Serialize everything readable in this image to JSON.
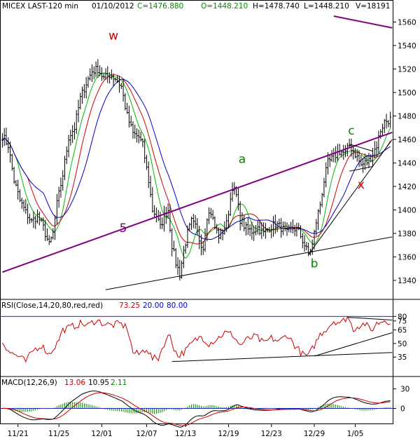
{
  "header": {
    "symbol": "MICEX LAST-120 min",
    "date": "01/10/2012",
    "close": "C=1476.880",
    "open": "O=1448.210",
    "high": "H=1478.740",
    "low": "L=1448.210",
    "volume": "V=18191"
  },
  "colors": {
    "price": "#000000",
    "ma_fast": "#00bb00",
    "ma_mid": "#cc0000",
    "ma_slow": "#0000cc",
    "trendline": "#800080",
    "rsi": "#cc0000",
    "macd": "#000000",
    "macd_signal": "#cc0000",
    "macd_hist": "#008800",
    "annotation_green": "#008800",
    "annotation_red": "#cc0000"
  },
  "chart_data": [
    {
      "type": "line",
      "panel": "price",
      "ylim": [
        1325,
        1568
      ],
      "yticks": [
        1340,
        1360,
        1380,
        1400,
        1420,
        1440,
        1460,
        1480,
        1500,
        1520,
        1540,
        1560
      ],
      "xticks": [
        "11/21",
        "11/25",
        "12/01",
        "12/07",
        "12/13",
        "12/19",
        "12/23",
        "12/29",
        "1/05"
      ],
      "xtick_bars": [
        8,
        29,
        51,
        74,
        94,
        116,
        138,
        160,
        181
      ],
      "bar_count": 200,
      "price_anchors": [
        [
          0,
          1463
        ],
        [
          3,
          1455
        ],
        [
          6,
          1425
        ],
        [
          9,
          1408
        ],
        [
          12,
          1398
        ],
        [
          15,
          1390
        ],
        [
          18,
          1395
        ],
        [
          21,
          1385
        ],
        [
          24,
          1370
        ],
        [
          26,
          1380
        ],
        [
          28,
          1405
        ],
        [
          31,
          1430
        ],
        [
          34,
          1462
        ],
        [
          37,
          1470
        ],
        [
          40,
          1495
        ],
        [
          43,
          1508
        ],
        [
          46,
          1518
        ],
        [
          49,
          1520
        ],
        [
          52,
          1512
        ],
        [
          55,
          1515
        ],
        [
          58,
          1512
        ],
        [
          61,
          1505
        ],
        [
          64,
          1480
        ],
        [
          67,
          1465
        ],
        [
          70,
          1462
        ],
        [
          72,
          1455
        ],
        [
          75,
          1425
        ],
        [
          77,
          1400
        ],
        [
          79,
          1395
        ],
        [
          81,
          1385
        ],
        [
          83,
          1395
        ],
        [
          85,
          1400
        ],
        [
          87,
          1370
        ],
        [
          89,
          1355
        ],
        [
          91,
          1345
        ],
        [
          93,
          1365
        ],
        [
          95,
          1380
        ],
        [
          97,
          1390
        ],
        [
          99,
          1385
        ],
        [
          101,
          1375
        ],
        [
          103,
          1368
        ],
        [
          105,
          1395
        ],
        [
          107,
          1398
        ],
        [
          109,
          1385
        ],
        [
          111,
          1378
        ],
        [
          113,
          1382
        ],
        [
          115,
          1388
        ],
        [
          118,
          1420
        ],
        [
          120,
          1412
        ],
        [
          122,
          1392
        ],
        [
          125,
          1384
        ],
        [
          128,
          1382
        ],
        [
          131,
          1385
        ],
        [
          134,
          1380
        ],
        [
          137,
          1385
        ],
        [
          140,
          1388
        ],
        [
          143,
          1385
        ],
        [
          146,
          1380
        ],
        [
          149,
          1385
        ],
        [
          152,
          1382
        ],
        [
          155,
          1370
        ],
        [
          157,
          1362
        ],
        [
          159,
          1370
        ],
        [
          161,
          1390
        ],
        [
          163,
          1405
        ],
        [
          165,
          1425
        ],
        [
          167,
          1440
        ],
        [
          170,
          1445
        ],
        [
          173,
          1450
        ],
        [
          176,
          1448
        ],
        [
          178,
          1455
        ],
        [
          180,
          1450
        ],
        [
          182,
          1445
        ],
        [
          184,
          1438
        ],
        [
          186,
          1440
        ],
        [
          188,
          1442
        ],
        [
          190,
          1448
        ],
        [
          192,
          1455
        ],
        [
          194,
          1468
        ],
        [
          196,
          1475
        ],
        [
          199,
          1477
        ]
      ],
      "trendlines": [
        {
          "name": "channel-upper",
          "points": [
            [
              0,
              1347
            ],
            [
              200,
              1466
            ]
          ]
        },
        {
          "name": "support-lower",
          "points": [
            [
              53,
              1332
            ],
            [
              200,
              1377
            ]
          ]
        },
        {
          "name": "wedge-upper",
          "points": [
            [
              178,
              1456
            ],
            [
              190,
              1450
            ]
          ]
        },
        {
          "name": "wedge-lower",
          "points": [
            [
              178,
              1433
            ],
            [
              190,
              1437
            ]
          ]
        },
        {
          "name": "rise-line",
          "points": [
            [
              157,
              1362
            ],
            [
              200,
              1460
            ]
          ]
        },
        {
          "name": "volume-line",
          "points": [
            [
              170,
              1565
            ],
            [
              200,
              1555
            ]
          ]
        }
      ],
      "annotations": [
        {
          "text": "w",
          "bar": 57,
          "y": 1545,
          "color": "annotation_red"
        },
        {
          "text": "5",
          "bar": 62,
          "y": 1381,
          "color": "trendline"
        },
        {
          "text": "a",
          "bar": 123,
          "y": 1440,
          "color": "annotation_green"
        },
        {
          "text": "b",
          "bar": 160,
          "y": 1351,
          "color": "annotation_green"
        },
        {
          "text": "c",
          "bar": 179,
          "y": 1464,
          "color": "annotation_green"
        },
        {
          "text": "x",
          "bar": 184,
          "y": 1418,
          "color": "annotation_red"
        }
      ]
    },
    {
      "type": "line",
      "panel": "rsi",
      "label": "RSI(Close,14,20,80,red,red)",
      "value": "73.25",
      "level_low": "20.00",
      "level_high": "80.00",
      "ylim": [
        15,
        88
      ],
      "yticks": [
        35,
        50,
        65,
        75,
        80
      ],
      "rsi_anchors": [
        [
          0,
          52
        ],
        [
          4,
          40
        ],
        [
          8,
          36
        ],
        [
          12,
          30
        ],
        [
          16,
          43
        ],
        [
          20,
          48
        ],
        [
          24,
          38
        ],
        [
          28,
          50
        ],
        [
          31,
          65
        ],
        [
          35,
          68
        ],
        [
          40,
          72
        ],
        [
          44,
          70
        ],
        [
          48,
          76
        ],
        [
          52,
          72
        ],
        [
          56,
          70
        ],
        [
          60,
          72
        ],
        [
          64,
          68
        ],
        [
          67,
          40
        ],
        [
          70,
          38
        ],
        [
          74,
          45
        ],
        [
          77,
          33
        ],
        [
          80,
          34
        ],
        [
          83,
          50
        ],
        [
          86,
          60
        ],
        [
          88,
          45
        ],
        [
          90,
          36
        ],
        [
          94,
          42
        ],
        [
          98,
          52
        ],
        [
          102,
          58
        ],
        [
          106,
          50
        ],
        [
          110,
          55
        ],
        [
          114,
          62
        ],
        [
          118,
          60
        ],
        [
          122,
          48
        ],
        [
          126,
          55
        ],
        [
          130,
          58
        ],
        [
          134,
          50
        ],
        [
          138,
          56
        ],
        [
          142,
          52
        ],
        [
          146,
          60
        ],
        [
          150,
          48
        ],
        [
          154,
          38
        ],
        [
          157,
          36
        ],
        [
          160,
          48
        ],
        [
          163,
          60
        ],
        [
          166,
          66
        ],
        [
          170,
          75
        ],
        [
          174,
          73
        ],
        [
          177,
          80
        ],
        [
          180,
          66
        ],
        [
          183,
          70
        ],
        [
          186,
          72
        ],
        [
          189,
          64
        ],
        [
          192,
          72
        ],
        [
          196,
          76
        ],
        [
          199,
          74
        ]
      ],
      "trendlines": [
        {
          "points": [
            [
              87,
              30
            ],
            [
              200,
              40
            ]
          ]
        },
        {
          "points": [
            [
              160,
              36
            ],
            [
              200,
              62
            ]
          ]
        },
        {
          "points": [
            [
              177,
              79
            ],
            [
              200,
              76
            ]
          ]
        }
      ]
    },
    {
      "type": "line",
      "panel": "macd",
      "label": "MACD(12,26,9)",
      "macd_value": "13.06",
      "signal_value": "10.95",
      "hist_value": "2.11",
      "ylim": [
        -22,
        34
      ],
      "yticks": [
        0,
        30
      ]
    }
  ]
}
